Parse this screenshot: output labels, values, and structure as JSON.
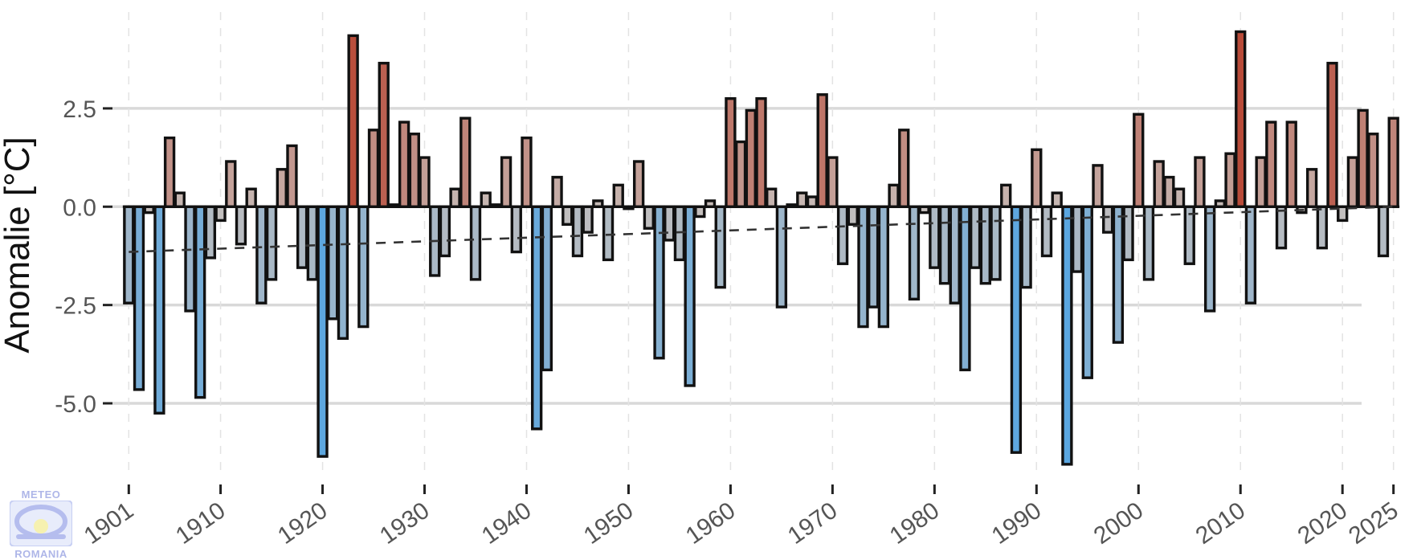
{
  "chart_data": {
    "type": "bar",
    "title": "",
    "xlabel": "",
    "ylabel": "Anomalie [°C]",
    "x": [
      1901,
      1902,
      1903,
      1904,
      1905,
      1906,
      1907,
      1908,
      1909,
      1910,
      1911,
      1912,
      1913,
      1914,
      1915,
      1916,
      1917,
      1918,
      1919,
      1920,
      1921,
      1922,
      1923,
      1924,
      1925,
      1926,
      1927,
      1928,
      1929,
      1930,
      1931,
      1932,
      1933,
      1934,
      1935,
      1936,
      1937,
      1938,
      1939,
      1940,
      1941,
      1942,
      1943,
      1944,
      1945,
      1946,
      1947,
      1948,
      1949,
      1950,
      1951,
      1952,
      1953,
      1954,
      1955,
      1956,
      1957,
      1958,
      1959,
      1960,
      1961,
      1962,
      1963,
      1964,
      1965,
      1966,
      1967,
      1968,
      1969,
      1970,
      1971,
      1972,
      1973,
      1974,
      1975,
      1976,
      1977,
      1978,
      1979,
      1980,
      1981,
      1982,
      1983,
      1984,
      1985,
      1986,
      1987,
      1988,
      1989,
      1990,
      1991,
      1992,
      1993,
      1994,
      1995,
      1996,
      1997,
      1998,
      1999,
      2000,
      2001,
      2002,
      2003,
      2004,
      2005,
      2006,
      2007,
      2008,
      2009,
      2010,
      2011,
      2012,
      2013,
      2014,
      2015,
      2016,
      2017,
      2018,
      2019,
      2020,
      2021,
      2022,
      2023,
      2024,
      2025
    ],
    "values": [
      -2.45,
      -4.65,
      -0.15,
      -5.25,
      1.75,
      0.35,
      -2.65,
      -4.85,
      -1.3,
      -0.35,
      1.15,
      -0.95,
      0.45,
      -2.45,
      -1.85,
      0.95,
      1.55,
      -1.55,
      -1.85,
      -6.35,
      -2.85,
      -3.35,
      4.35,
      -3.05,
      1.95,
      3.65,
      0.05,
      2.15,
      1.85,
      1.25,
      -1.75,
      -1.25,
      0.45,
      2.25,
      -1.85,
      0.35,
      0.05,
      1.25,
      -1.15,
      1.75,
      -5.65,
      -4.15,
      0.75,
      -0.45,
      -1.25,
      -0.65,
      0.15,
      -1.35,
      0.55,
      -0.05,
      1.15,
      -0.55,
      -3.85,
      -0.85,
      -1.35,
      -4.55,
      -0.25,
      0.15,
      -2.05,
      2.75,
      1.65,
      2.45,
      2.75,
      0.45,
      -2.55,
      0.05,
      0.35,
      0.25,
      2.85,
      1.25,
      -1.45,
      -0.45,
      -3.05,
      -2.55,
      -3.05,
      0.55,
      1.95,
      -2.35,
      -0.15,
      -1.55,
      -1.95,
      -2.45,
      -4.15,
      -1.55,
      -1.95,
      -1.85,
      0.55,
      -6.25,
      -2.05,
      1.45,
      -1.25,
      0.35,
      -6.55,
      -1.65,
      -4.35,
      1.05,
      -0.65,
      -3.45,
      -1.35,
      2.35,
      -1.85,
      1.15,
      0.75,
      0.45,
      -1.45,
      1.25,
      -2.65,
      0.15,
      1.35,
      4.45,
      -2.45,
      1.25,
      2.15,
      -1.05,
      2.15,
      -0.15,
      0.95,
      -1.05,
      3.65,
      -0.35,
      1.25,
      2.45,
      1.85,
      -1.25,
      2.25
    ],
    "trend": {
      "style": "dashed",
      "start": {
        "x": 1901,
        "y": -1.15
      },
      "end": {
        "x": 2025,
        "y": 0.0
      }
    },
    "ylim": [
      -6.9,
      4.95
    ],
    "xlim": [
      1899.4,
      2026.6
    ],
    "yticks": [
      2.5,
      0.0,
      -2.5,
      -5.0
    ],
    "ytick_labels": [
      "2.5",
      "0.0",
      "-2.5",
      "-5.0"
    ],
    "xticks": [
      1901,
      1910,
      1920,
      1930,
      1940,
      1950,
      1960,
      1970,
      1980,
      1990,
      2000,
      2010,
      2020,
      2025
    ],
    "xtick_labels": [
      "1901",
      "1910",
      "1920",
      "1930",
      "1940",
      "1950",
      "1960",
      "1970",
      "1980",
      "1990",
      "2000",
      "2010",
      "2020",
      "2025"
    ],
    "grid": true,
    "legend": "none",
    "colors": {
      "cold": "#5aa6e0",
      "neutral": "#c8c0bc",
      "warm": "#b84a38"
    }
  },
  "logo": {
    "top_text": "METEO",
    "bottom_text": "ROMANIA"
  }
}
